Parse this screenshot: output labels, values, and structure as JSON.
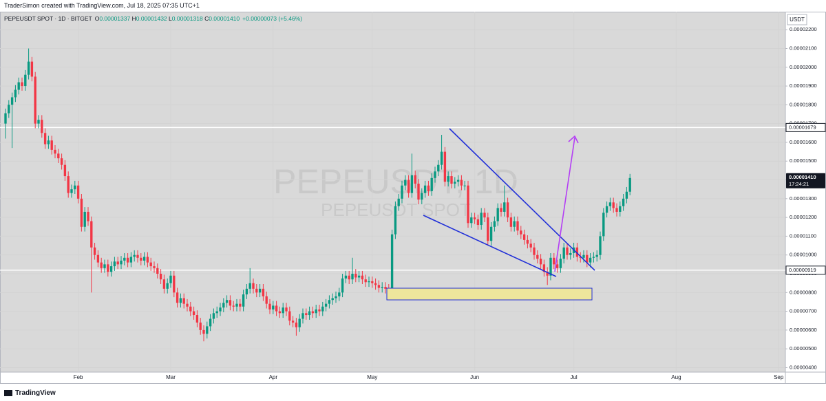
{
  "header": {
    "attribution": "TraderSimon created with TradingView.com, Jul 18, 2025 07:35 UTC+1",
    "symbol": "PEPEUSDT SPOT · 1D · BITGET",
    "ohlc": [
      {
        "key": "O",
        "value": "0.00001337"
      },
      {
        "key": "H",
        "value": "0.00001432"
      },
      {
        "key": "L",
        "value": "0.00001318"
      },
      {
        "key": "C",
        "value": "0.00001410"
      }
    ],
    "change": "+0.00000073 (+5.46%)"
  },
  "currency": "USDT",
  "watermark": [
    "PEPEUSDT, 1D",
    "PEPEUSDT SPOT"
  ],
  "brand": "TradingView",
  "chart_data": {
    "type": "candlestick",
    "up_color": "#089981",
    "down_color": "#f23645",
    "grid": true,
    "ylim": [
      3.76e-06,
      2.296e-05
    ],
    "yticks": [
      {
        "value": 4e-06,
        "label": "0.00000400"
      },
      {
        "value": 5e-06,
        "label": "0.00000500"
      },
      {
        "value": 6e-06,
        "label": "0.00000600"
      },
      {
        "value": 7e-06,
        "label": "0.00000700"
      },
      {
        "value": 8e-06,
        "label": "0.00000800"
      },
      {
        "value": 9e-06,
        "label": "0.00000900"
      },
      {
        "value": 1e-05,
        "label": "0.00001000"
      },
      {
        "value": 1.1e-05,
        "label": "0.00001100"
      },
      {
        "value": 1.2e-05,
        "label": "0.00001200"
      },
      {
        "value": 1.3e-05,
        "label": "0.00001300"
      },
      {
        "value": 1.4e-05,
        "label": "0.00001400"
      },
      {
        "value": 1.5e-05,
        "label": "0.00001500"
      },
      {
        "value": 1.6e-05,
        "label": "0.00001600"
      },
      {
        "value": 1.7e-05,
        "label": "0.00001700"
      },
      {
        "value": 1.8e-05,
        "label": "0.00001800"
      },
      {
        "value": 1.9e-05,
        "label": "0.00001900"
      },
      {
        "value": 2e-05,
        "label": "0.00002000"
      },
      {
        "value": 2.1e-05,
        "label": "0.00002100"
      },
      {
        "value": 2.2e-05,
        "label": "0.00002200"
      }
    ],
    "price_lines": [
      {
        "value": 1.679e-05,
        "label": "0.00001679"
      },
      {
        "value": 9.19e-06,
        "label": "0.00000919"
      }
    ],
    "last_price": {
      "value": 1.41e-05,
      "label": "0.00001410",
      "countdown": "17:24:21"
    },
    "categories": [
      null,
      null,
      null,
      null,
      null,
      null,
      null,
      null,
      null,
      null,
      null,
      null,
      null,
      null,
      null,
      null,
      null,
      null,
      null,
      null,
      null,
      null,
      "Feb",
      null,
      null,
      null,
      null,
      null,
      null,
      null,
      null,
      null,
      null,
      null,
      null,
      null,
      null,
      null,
      null,
      null,
      null,
      null,
      null,
      null,
      null,
      null,
      null,
      null,
      null,
      null,
      "Mar",
      null,
      null,
      null,
      null,
      null,
      null,
      null,
      null,
      null,
      null,
      null,
      null,
      null,
      null,
      null,
      null,
      null,
      null,
      null,
      null,
      null,
      null,
      null,
      null,
      null,
      null,
      null,
      null,
      null,
      null,
      "Apr",
      null,
      null,
      null,
      null,
      null,
      null,
      null,
      null,
      null,
      null,
      null,
      null,
      null,
      null,
      null,
      null,
      null,
      null,
      null,
      null,
      null,
      null,
      null,
      null,
      null,
      null,
      null,
      null,
      null,
      "May",
      null,
      null,
      null,
      null,
      null,
      null,
      null,
      null,
      null,
      null,
      null,
      null,
      null,
      null,
      null,
      null,
      null,
      null,
      null,
      null,
      null,
      null,
      null,
      null,
      null,
      null,
      null,
      null,
      null,
      null,
      "Jun",
      null,
      null,
      null,
      null,
      null,
      null,
      null,
      null,
      null,
      null,
      null,
      null,
      null,
      null,
      null,
      null,
      null,
      null,
      null,
      null,
      null,
      null,
      null,
      null,
      null,
      null,
      null,
      null,
      null,
      "Jul",
      null,
      null,
      null,
      null,
      null,
      null,
      null,
      null,
      null,
      null,
      null,
      null,
      null,
      null,
      null,
      null,
      null,
      null,
      null,
      null,
      null,
      null,
      null,
      null,
      null,
      null,
      null,
      null,
      null,
      null,
      "Aug",
      null,
      null,
      null,
      null,
      null,
      null,
      null,
      null,
      null,
      null,
      null,
      null,
      null,
      null,
      null,
      null,
      null,
      null,
      null,
      null,
      null,
      null,
      null,
      null,
      null,
      null,
      null,
      null,
      null,
      null,
      "Sep",
      null
    ],
    "open": [
      1.7e-05,
      1.755e-05,
      1.8e-05,
      1.84e-05,
      1.88e-05,
      1.92e-05,
      1.9e-05,
      1.96e-05,
      2.03e-05,
      1.95e-05,
      1.7e-05,
      1.72e-05,
      1.65e-05,
      1.59e-05,
      1.61e-05,
      1.56e-05,
      1.54e-05,
      1.515e-05,
      1.48e-05,
      1.42e-05,
      1.33e-05,
      1.35e-05,
      1.37e-05,
      1.3e-05,
      1.15e-05,
      1.23e-05,
      1.18e-05,
      1.04e-05,
      1e-05,
      9.6e-06,
      9.3e-06,
      9.5e-06,
      9.1e-06,
      9.4e-06,
      9.65e-06,
      9.5e-06,
      9.7e-06,
      9.85e-06,
      9.6e-06,
      9.9e-06,
      1e-05,
      9.85e-06,
      9.7e-06,
      9.9e-06,
      9.6e-06,
      9.4e-06,
      9.3e-06,
      9e-06,
      8.7e-06,
      8.2e-06,
      8.5e-06,
      8.9e-06,
      8e-06,
      7.45e-06,
      7.7e-06,
      7.4e-06,
      7.25e-06,
      7e-06,
      6.8e-06,
      6.4e-06,
      6e-06,
      5.8e-06,
      6.2e-06,
      6.6e-06,
      6.9e-06,
      7e-06,
      7.2e-06,
      7.45e-06,
      7.6e-06,
      7.3e-06,
      7.25e-06,
      7.4e-06,
      7.25e-06,
      7.9e-06,
      8.2e-06,
      8.5e-06,
      8.2e-06,
      8e-06,
      8.2e-06,
      7.8e-06,
      7.4e-06,
      7.1e-06,
      7.3e-06,
      7e-06,
      6.9e-06,
      7.2e-06,
      7e-06,
      6.5e-06,
      6.4e-06,
      6.15e-06,
      6.6e-06,
      6.9e-06,
      6.8e-06,
      7e-06,
      6.9e-06,
      7.1e-06,
      7e-06,
      7.25e-06,
      7.4e-06,
      7.6e-06,
      7.7e-06,
      7.8e-06,
      8e-06,
      8.75e-06,
      8.9e-06,
      8.7e-06,
      9e-06,
      8.8e-06,
      8.9e-06,
      8.7e-06,
      8.55e-06,
      8.6e-06,
      8.5e-06,
      8.4e-06,
      8.25e-06,
      8.3e-06,
      8.2e-06,
      8.1e-06,
      1.11e-05,
      1.26e-05,
      1.3e-05,
      1.37e-05,
      1.4e-05,
      1.33e-05,
      1.425e-05,
      1.38e-05,
      1.295e-05,
      1.33e-05,
      1.37e-05,
      1.34e-05,
      1.41e-05,
      1.445e-05,
      1.48e-05,
      1.55e-05,
      1.39e-05,
      1.42e-05,
      1.38e-05,
      1.39e-05,
      1.4e-05,
      1.37e-05,
      1.37e-05,
      1.17e-05,
      1.2e-05,
      1.19e-05,
      1.16e-05,
      1.225e-05,
      1.2e-05,
      1.075e-05,
      1.15e-05,
      1.18e-05,
      1.25e-05,
      1.23e-05,
      1.28e-05,
      1.2e-05,
      1.15e-05,
      1.18e-05,
      1.13e-05,
      1.11e-05,
      1.08e-05,
      1.06e-05,
      1.04e-05,
      1e-05,
      9.8e-06,
      9.5e-06,
      9.1e-06,
      8.9e-06,
      9.85e-06,
      9.5e-06,
      9.3e-06,
      9.8e-06,
      1.04e-05,
      1e-05,
      1.01e-05,
      1.04e-05,
      9.9e-06,
      9.85e-06,
      1e-05,
      9.6e-06,
      9.85e-06,
      9.9e-06,
      1e-05,
      1.1e-05,
      1.225e-05,
      1.26e-05,
      1.28e-05,
      1.25e-05,
      1.23e-05,
      1.26e-05,
      1.3e-05,
      1.337e-05,
      null,
      null,
      null,
      null,
      null,
      null,
      null,
      null,
      null,
      null,
      null,
      null,
      null,
      null,
      null,
      null,
      null,
      null,
      null,
      null,
      null,
      null,
      null,
      null,
      null,
      null,
      null,
      null,
      null,
      null,
      null,
      null,
      null,
      null,
      null,
      null,
      null,
      null,
      null,
      null,
      null,
      null,
      null,
      null,
      null,
      null
    ],
    "high": [
      1.78e-05,
      1.825e-05,
      1.865e-05,
      1.905e-05,
      1.945e-05,
      1.945e-05,
      1.985e-05,
      2.1e-05,
      2.055e-05,
      1.975e-05,
      1.745e-05,
      1.745e-05,
      1.675e-05,
      1.635e-05,
      1.635e-05,
      1.585e-05,
      1.565e-05,
      1.54e-05,
      1.505e-05,
      1.445e-05,
      1.375e-05,
      1.395e-05,
      1.395e-05,
      1.325e-05,
      1.255e-05,
      1.255e-05,
      1.205e-05,
      1.065e-05,
      1.025e-05,
      9.85e-06,
      9.75e-06,
      9.75e-06,
      9.65e-06,
      9.9e-06,
      9.9e-06,
      9.95e-06,
      1.01e-05,
      1.01e-05,
      1.015e-05,
      1.025e-05,
      1.025e-05,
      1.01e-05,
      1.015e-05,
      1.015e-05,
      9.85e-06,
      9.65e-06,
      9.55e-06,
      9.25e-06,
      8.95e-06,
      8.75e-06,
      9.15e-06,
      9.15e-06,
      8.25e-06,
      7.95e-06,
      7.95e-06,
      7.65e-06,
      7.5e-06,
      7.25e-06,
      7.05e-06,
      6.65e-06,
      6.25e-06,
      6.45e-06,
      6.85e-06,
      7.15e-06,
      7.25e-06,
      7.45e-06,
      7.7e-06,
      7.85e-06,
      7.85e-06,
      7.55e-06,
      7.65e-06,
      7.65e-06,
      8.15e-06,
      8.45e-06,
      9.3e-06,
      8.75e-06,
      8.45e-06,
      8.45e-06,
      8.45e-06,
      8.05e-06,
      7.65e-06,
      7.55e-06,
      7.55e-06,
      7.25e-06,
      7.45e-06,
      7.45e-06,
      7.25e-06,
      6.75e-06,
      6.65e-06,
      6.85e-06,
      7.15e-06,
      7.15e-06,
      7.25e-06,
      7.25e-06,
      7.35e-06,
      7.35e-06,
      7.5e-06,
      7.65e-06,
      7.85e-06,
      7.95e-06,
      8.05e-06,
      8.25e-06,
      9e-06,
      9.15e-06,
      9.15e-06,
      9.85e-06,
      9.25e-06,
      9.15e-06,
      9.15e-06,
      8.95e-06,
      8.85e-06,
      8.85e-06,
      8.75e-06,
      8.65e-06,
      8.55e-06,
      8.55e-06,
      8.45e-06,
      1.135e-05,
      1.285e-05,
      1.325e-05,
      1.395e-05,
      1.425e-05,
      1.425e-05,
      1.54e-05,
      1.45e-05,
      1.405e-05,
      1.355e-05,
      1.395e-05,
      1.395e-05,
      1.435e-05,
      1.47e-05,
      1.505e-05,
      1.64e-05,
      1.575e-05,
      1.445e-05,
      1.445e-05,
      1.415e-05,
      1.425e-05,
      1.425e-05,
      1.395e-05,
      1.395e-05,
      1.225e-05,
      1.225e-05,
      1.215e-05,
      1.25e-05,
      1.25e-05,
      1.225e-05,
      1.175e-05,
      1.205e-05,
      1.275e-05,
      1.275e-05,
      1.37e-05,
      1.305e-05,
      1.225e-05,
      1.205e-05,
      1.205e-05,
      1.155e-05,
      1.135e-05,
      1.105e-05,
      1.085e-05,
      1.065e-05,
      1.025e-05,
      1.005e-05,
      9.75e-06,
      9.35e-06,
      1.01e-05,
      1.01e-05,
      9.75e-06,
      1.005e-05,
      1.065e-05,
      1.065e-05,
      1.035e-05,
      1.065e-05,
      1.065e-05,
      1.015e-05,
      1.025e-05,
      1.025e-05,
      1.01e-05,
      1.015e-05,
      1.025e-05,
      1.125e-05,
      1.25e-05,
      1.285e-05,
      1.305e-05,
      1.305e-05,
      1.275e-05,
      1.285e-05,
      1.325e-05,
      1.362e-05,
      1.432e-05,
      null,
      null,
      null,
      null,
      null,
      null,
      null,
      null,
      null,
      null,
      null,
      null,
      null,
      null,
      null,
      null,
      null,
      null,
      null,
      null,
      null,
      null,
      null,
      null,
      null,
      null,
      null,
      null,
      null,
      null,
      null,
      null,
      null,
      null,
      null,
      null,
      null,
      null,
      null,
      null,
      null,
      null,
      null,
      null,
      null,
      null
    ],
    "low": [
      1.62e-05,
      1.73e-05,
      1.57e-05,
      1.815e-05,
      1.855e-05,
      1.875e-05,
      1.875e-05,
      1.935e-05,
      1.925e-05,
      1.675e-05,
      1.675e-05,
      1.625e-05,
      1.565e-05,
      1.565e-05,
      1.535e-05,
      1.515e-05,
      1.49e-05,
      1.455e-05,
      1.395e-05,
      1.305e-05,
      1.305e-05,
      1.325e-05,
      1.275e-05,
      1.125e-05,
      1.125e-05,
      1.155e-05,
      8e-06,
      9.75e-06,
      9.35e-06,
      9.05e-06,
      9.05e-06,
      8.85e-06,
      8.85e-06,
      9.15e-06,
      9.25e-06,
      9.25e-06,
      9.45e-06,
      9.35e-06,
      9.35e-06,
      9.65e-06,
      9.6e-06,
      9.45e-06,
      9.45e-06,
      9.35e-06,
      9.15e-06,
      9.05e-06,
      8.75e-06,
      8.45e-06,
      7.95e-06,
      7.95e-06,
      8.25e-06,
      7.75e-06,
      7.2e-06,
      7.2e-06,
      7.15e-06,
      7e-06,
      6.75e-06,
      6.55e-06,
      6.15e-06,
      5.75e-06,
      5.4e-06,
      5.55e-06,
      5.95e-06,
      6.35e-06,
      6.65e-06,
      6.75e-06,
      6.95e-06,
      7.2e-06,
      7.05e-06,
      7e-06,
      7e-06,
      7e-06,
      7e-06,
      7.65e-06,
      7.95e-06,
      7.95e-06,
      7.75e-06,
      7.75e-06,
      7.55e-06,
      7.15e-06,
      6.85e-06,
      6.85e-06,
      6.75e-06,
      6.65e-06,
      6.65e-06,
      6.75e-06,
      6.25e-06,
      6.15e-06,
      5.7e-06,
      5.9e-06,
      6.35e-06,
      6.55e-06,
      6.55e-06,
      6.65e-06,
      6.65e-06,
      6.75e-06,
      6.75e-06,
      7e-06,
      7.15e-06,
      7.35e-06,
      7.45e-06,
      7.55e-06,
      7.75e-06,
      8.5e-06,
      8.45e-06,
      8.45e-06,
      8.55e-06,
      8.55e-06,
      8.45e-06,
      8.3e-06,
      8.3e-06,
      8.25e-06,
      8.15e-06,
      8e-06,
      8e-06,
      7.95e-06,
      7.6e-06,
      7.9e-06,
      1.085e-05,
      1.235e-05,
      1.275e-05,
      1.345e-05,
      1.305e-05,
      1.305e-05,
      1.355e-05,
      1.27e-05,
      1.27e-05,
      1.305e-05,
      1.315e-05,
      1.315e-05,
      1.385e-05,
      1.42e-05,
      1.455e-05,
      1.365e-05,
      1.365e-05,
      1.355e-05,
      1.355e-05,
      1.365e-05,
      1.345e-05,
      1.345e-05,
      1.145e-05,
      1.145e-05,
      1.165e-05,
      1.135e-05,
      1.135e-05,
      1.175e-05,
      1.05e-05,
      1.05e-05,
      1.125e-05,
      1.155e-05,
      1.205e-05,
      1.205e-05,
      1.175e-05,
      1.125e-05,
      1.125e-05,
      1.105e-05,
      1.085e-05,
      1.055e-05,
      1.035e-05,
      1.015e-05,
      9.75e-06,
      9.55e-06,
      9.25e-06,
      8.85e-06,
      8.4e-06,
      8.65e-06,
      9.25e-06,
      9.05e-06,
      9.05e-06,
      9.55e-06,
      9.75e-06,
      9.75e-06,
      9.85e-06,
      9.65e-06,
      9.6e-06,
      9.6e-06,
      9.35e-06,
      9.35e-06,
      9.6e-06,
      9.65e-06,
      9.75e-06,
      1.075e-05,
      1.2e-05,
      1.235e-05,
      1.225e-05,
      1.205e-05,
      1.205e-05,
      1.235e-05,
      1.275e-05,
      1.318e-05,
      null,
      null,
      null,
      null,
      null,
      null,
      null,
      null,
      null,
      null,
      null,
      null,
      null,
      null,
      null,
      null,
      null,
      null,
      null,
      null,
      null,
      null,
      null,
      null,
      null,
      null,
      null,
      null,
      null,
      null,
      null,
      null,
      null,
      null,
      null,
      null,
      null,
      null,
      null,
      null,
      null,
      null,
      null,
      null,
      null,
      null
    ],
    "close": [
      1.755e-05,
      1.8e-05,
      1.84e-05,
      1.88e-05,
      1.92e-05,
      1.9e-05,
      1.96e-05,
      2.03e-05,
      1.95e-05,
      1.7e-05,
      1.72e-05,
      1.65e-05,
      1.59e-05,
      1.61e-05,
      1.56e-05,
      1.54e-05,
      1.515e-05,
      1.48e-05,
      1.42e-05,
      1.33e-05,
      1.35e-05,
      1.37e-05,
      1.3e-05,
      1.15e-05,
      1.23e-05,
      1.18e-05,
      1.04e-05,
      1e-05,
      9.6e-06,
      9.3e-06,
      9.5e-06,
      9.1e-06,
      9.4e-06,
      9.65e-06,
      9.5e-06,
      9.7e-06,
      9.85e-06,
      9.6e-06,
      9.9e-06,
      1e-05,
      9.85e-06,
      9.7e-06,
      9.9e-06,
      9.6e-06,
      9.4e-06,
      9.3e-06,
      9e-06,
      8.7e-06,
      8.2e-06,
      8.5e-06,
      8.9e-06,
      8e-06,
      7.45e-06,
      7.7e-06,
      7.4e-06,
      7.25e-06,
      7e-06,
      6.8e-06,
      6.4e-06,
      6e-06,
      5.8e-06,
      6.2e-06,
      6.6e-06,
      6.9e-06,
      7e-06,
      7.2e-06,
      7.45e-06,
      7.6e-06,
      7.3e-06,
      7.25e-06,
      7.4e-06,
      7.25e-06,
      7.9e-06,
      8.2e-06,
      8.5e-06,
      8.2e-06,
      8e-06,
      8.2e-06,
      7.8e-06,
      7.4e-06,
      7.1e-06,
      7.3e-06,
      7e-06,
      6.9e-06,
      7.2e-06,
      7e-06,
      6.5e-06,
      6.4e-06,
      6.15e-06,
      6.6e-06,
      6.9e-06,
      6.8e-06,
      7e-06,
      6.9e-06,
      7.1e-06,
      7e-06,
      7.25e-06,
      7.4e-06,
      7.6e-06,
      7.7e-06,
      7.8e-06,
      8e-06,
      8.75e-06,
      8.9e-06,
      8.7e-06,
      9e-06,
      8.8e-06,
      8.9e-06,
      8.7e-06,
      8.55e-06,
      8.6e-06,
      8.5e-06,
      8.4e-06,
      8.25e-06,
      8.3e-06,
      8.2e-06,
      8.1e-06,
      1.11e-05,
      1.26e-05,
      1.3e-05,
      1.37e-05,
      1.4e-05,
      1.33e-05,
      1.425e-05,
      1.38e-05,
      1.295e-05,
      1.33e-05,
      1.37e-05,
      1.34e-05,
      1.41e-05,
      1.445e-05,
      1.48e-05,
      1.55e-05,
      1.39e-05,
      1.42e-05,
      1.38e-05,
      1.39e-05,
      1.4e-05,
      1.37e-05,
      1.37e-05,
      1.17e-05,
      1.2e-05,
      1.19e-05,
      1.16e-05,
      1.225e-05,
      1.2e-05,
      1.075e-05,
      1.15e-05,
      1.18e-05,
      1.25e-05,
      1.23e-05,
      1.28e-05,
      1.2e-05,
      1.15e-05,
      1.18e-05,
      1.13e-05,
      1.11e-05,
      1.08e-05,
      1.06e-05,
      1.04e-05,
      1e-05,
      9.8e-06,
      9.5e-06,
      9.1e-06,
      8.9e-06,
      9.85e-06,
      9.5e-06,
      9.3e-06,
      9.8e-06,
      1.04e-05,
      1e-05,
      1.01e-05,
      1.04e-05,
      9.9e-06,
      9.85e-06,
      1e-05,
      9.6e-06,
      9.85e-06,
      9.9e-06,
      1e-05,
      1.1e-05,
      1.225e-05,
      1.26e-05,
      1.28e-05,
      1.25e-05,
      1.23e-05,
      1.26e-05,
      1.3e-05,
      1.337e-05,
      1.41e-05,
      null,
      null,
      null,
      null,
      null,
      null,
      null,
      null,
      null,
      null,
      null,
      null,
      null,
      null,
      null,
      null,
      null,
      null,
      null,
      null,
      null,
      null,
      null,
      null,
      null,
      null,
      null,
      null,
      null,
      null,
      null,
      null,
      null,
      null,
      null,
      null,
      null,
      null,
      null,
      null,
      null,
      null,
      null,
      null,
      null,
      null
    ]
  }
}
